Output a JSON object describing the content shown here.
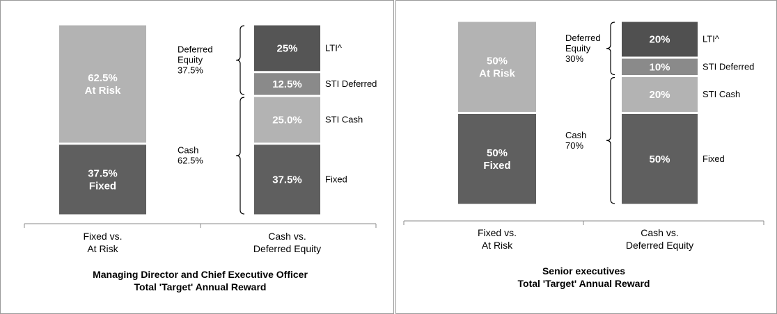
{
  "chart_data": [
    {
      "type": "stacked_bar",
      "title": "Managing Director and Chief Executive Officer\nTotal 'Target' Annual Reward",
      "categories": [
        "Fixed vs.\nAt Risk",
        "Cash vs.\nDeferred Equity"
      ],
      "bars": [
        {
          "values": [
            37.5,
            62.5
          ],
          "value_labels": [
            "37.5%\nFixed",
            "62.5%\nAt Risk"
          ],
          "colors": [
            "#5f5f5f",
            "#b3b3b3"
          ]
        },
        {
          "values": [
            37.5,
            25.0,
            12.5,
            25
          ],
          "value_labels": [
            "37.5%",
            "25.0%",
            "12.5%",
            "25%"
          ],
          "names": [
            "Fixed",
            "STI Cash",
            "STI Deferred",
            "LTI^"
          ],
          "colors": [
            "#5f5f5f",
            "#b3b3b3",
            "#8a8a8a",
            "#555555"
          ]
        }
      ],
      "brackets": [
        {
          "label": "Deferred\nEquity\n37.5%",
          "segments": [
            "STI Deferred",
            "LTI^"
          ]
        },
        {
          "label": "Cash\n62.5%",
          "segments": [
            "Fixed",
            "STI Cash"
          ]
        }
      ]
    },
    {
      "type": "stacked_bar",
      "title": "Senior executives\nTotal 'Target' Annual Reward",
      "categories": [
        "Fixed vs.\nAt Risk",
        "Cash vs.\nDeferred Equity"
      ],
      "bars": [
        {
          "values": [
            50,
            50
          ],
          "value_labels": [
            "50%\nFixed",
            "50%\nAt Risk"
          ],
          "colors": [
            "#5f5f5f",
            "#b3b3b3"
          ]
        },
        {
          "values": [
            50,
            20,
            10,
            20
          ],
          "value_labels": [
            "50%",
            "20%",
            "10%",
            "20%"
          ],
          "names": [
            "Fixed",
            "STI Cash",
            "STI Deferred",
            "LTI^"
          ],
          "colors": [
            "#5f5f5f",
            "#b3b3b3",
            "#8a8a8a",
            "#505050"
          ]
        }
      ],
      "brackets": [
        {
          "label": "Deferred\nEquity\n30%",
          "segments": [
            "STI Deferred",
            "LTI^"
          ]
        },
        {
          "label": "Cash\n70%",
          "segments": [
            "Fixed",
            "STI Cash"
          ]
        }
      ]
    }
  ]
}
